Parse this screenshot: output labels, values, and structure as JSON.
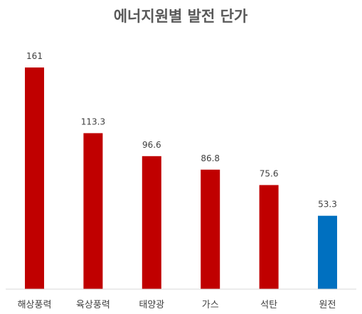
{
  "chart_data": {
    "type": "bar",
    "title": "에너지원별 발전 단가",
    "categories": [
      "해상풍력",
      "육상풍력",
      "태양광",
      "가스",
      "석탄",
      "원전"
    ],
    "values": [
      161,
      113.3,
      96.6,
      86.8,
      75.6,
      53.3
    ],
    "value_labels": [
      "161",
      "113.3",
      "96.6",
      "86.8",
      "75.6",
      "53.3"
    ],
    "colors": [
      "#c00000",
      "#c00000",
      "#c00000",
      "#c00000",
      "#c00000",
      "#0070c0"
    ],
    "ylim": [
      0,
      161
    ],
    "grid": false,
    "legend": "none",
    "xlabel": "",
    "ylabel": ""
  }
}
